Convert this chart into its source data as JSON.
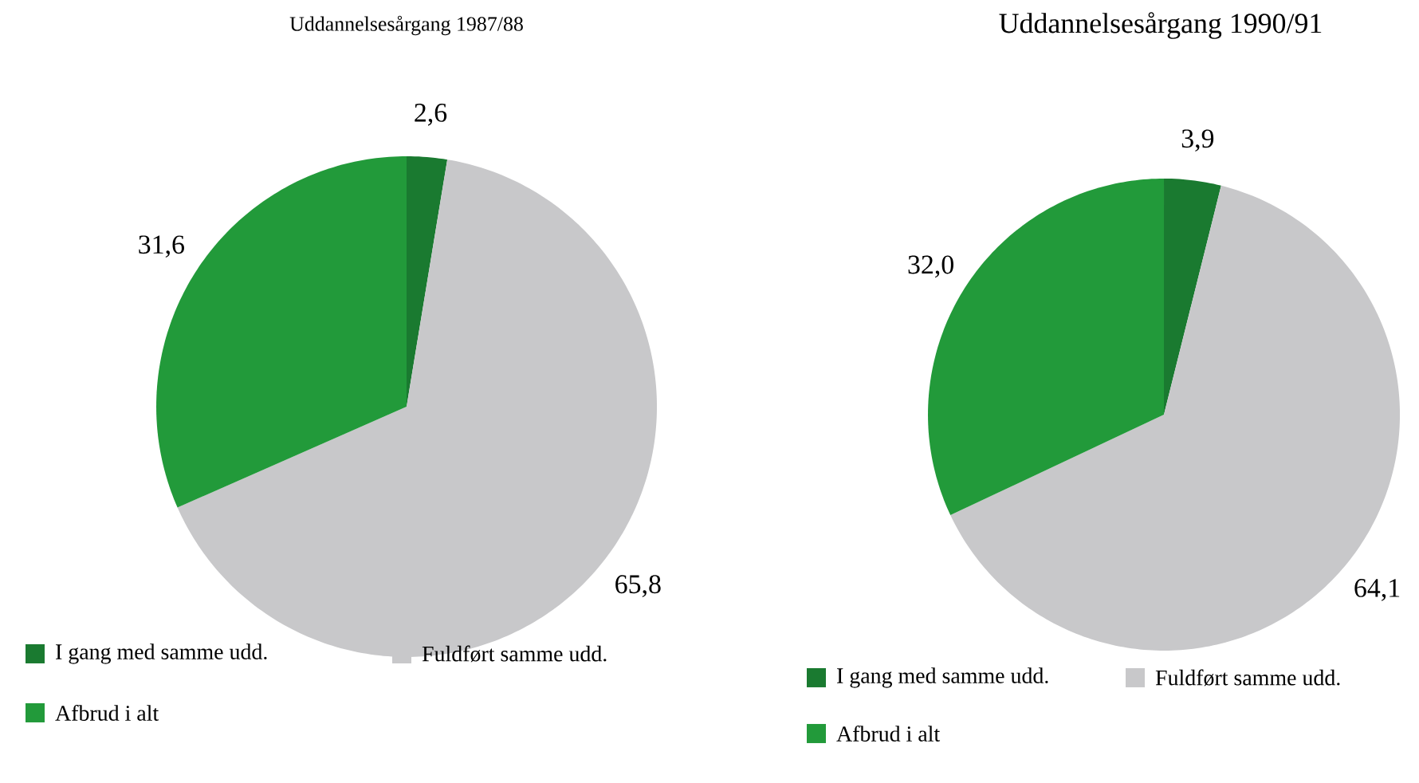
{
  "chart_data": [
    {
      "type": "pie",
      "title": "Uddannelsesårgang 1987/88",
      "categories": [
        "I gang med samme udd.",
        "Fuldført samme udd.",
        "Afbrud i alt"
      ],
      "values": [
        2.6,
        65.8,
        31.6
      ],
      "value_labels": [
        "2,6",
        "65,8",
        "31,6"
      ],
      "colors": [
        "#1a7a30",
        "#c8c8ca",
        "#229a3a"
      ],
      "legend": "bottom"
    },
    {
      "type": "pie",
      "title": "Uddannelsesårgang 1990/91",
      "categories": [
        "I gang med samme udd.",
        "Fuldført samme udd.",
        "Afbrud i alt"
      ],
      "values": [
        3.9,
        64.1,
        32.0
      ],
      "value_labels": [
        "3,9",
        "64,1",
        "32,0"
      ],
      "colors": [
        "#1a7a30",
        "#c8c8ca",
        "#229a3a"
      ],
      "legend": "bottom"
    }
  ]
}
